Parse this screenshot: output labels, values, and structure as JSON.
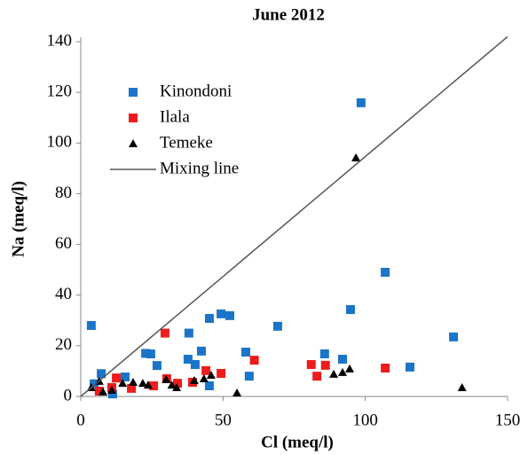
{
  "chart_data": {
    "type": "scatter",
    "title": "June 2012",
    "x_label": "Cl (meq/l)",
    "y_label": "Na (meq/l)",
    "xlim": [
      0,
      150
    ],
    "ylim": [
      0,
      140
    ],
    "xticks": [
      0,
      50,
      100,
      150
    ],
    "yticks": [
      0,
      20,
      40,
      60,
      80,
      100,
      120,
      140
    ],
    "grid": false,
    "legend": "upper left",
    "series": [
      {
        "name": "Kinondoni",
        "color": "#1a75c9",
        "marker": "square",
        "x": [
          3.7,
          7.2,
          4.7,
          11.2,
          15.6,
          22.8,
          24.6,
          26.8,
          38,
          37.7,
          40.2,
          42.4,
          45.2,
          49.3,
          52.4,
          45.2,
          58,
          59.2,
          69.2,
          92,
          94.8,
          85.7,
          98.5,
          107,
          115.7,
          131
        ],
        "values": [
          28,
          9,
          5,
          1,
          7.7,
          17,
          16.8,
          12.2,
          25,
          14.7,
          12.6,
          17.9,
          30.8,
          32.6,
          31.9,
          4.2,
          17.5,
          8,
          27.7,
          14.7,
          34.3,
          16.8,
          115.9,
          49,
          11.6,
          23.5
        ]
      },
      {
        "name": "Ilala",
        "color": "#ee1c1c",
        "marker": "square",
        "x": [
          29.6,
          61,
          81,
          86,
          83,
          107,
          44,
          49.3,
          39.3,
          25.6,
          17.8,
          10.9,
          6.5,
          12.5,
          34,
          30.2
        ],
        "values": [
          25,
          14.3,
          12.6,
          12.3,
          8,
          11.2,
          10.2,
          9.1,
          5.6,
          4.2,
          3.2,
          3.5,
          2.1,
          7.3,
          5.2,
          7
        ]
      },
      {
        "name": "Temeke",
        "color": "#000000",
        "marker": "triangle",
        "x": [
          96.7,
          3.7,
          6.5,
          7.8,
          10.9,
          14.7,
          18.4,
          21.8,
          23.7,
          30,
          32,
          33.7,
          43.3,
          45.8,
          39.9,
          54.9,
          88.9,
          92,
          94.5,
          134
        ],
        "values": [
          94.2,
          3.5,
          6,
          1.8,
          2.5,
          5.2,
          5.6,
          5.2,
          4.5,
          6.7,
          4.5,
          3.5,
          7,
          8.4,
          6.3,
          1.4,
          8.8,
          9.5,
          10.9,
          3.5
        ]
      },
      {
        "name": "Mixing line",
        "color": "#555555",
        "marker": "line",
        "x": [
          0,
          150
        ],
        "values": [
          0,
          142
        ]
      }
    ]
  }
}
